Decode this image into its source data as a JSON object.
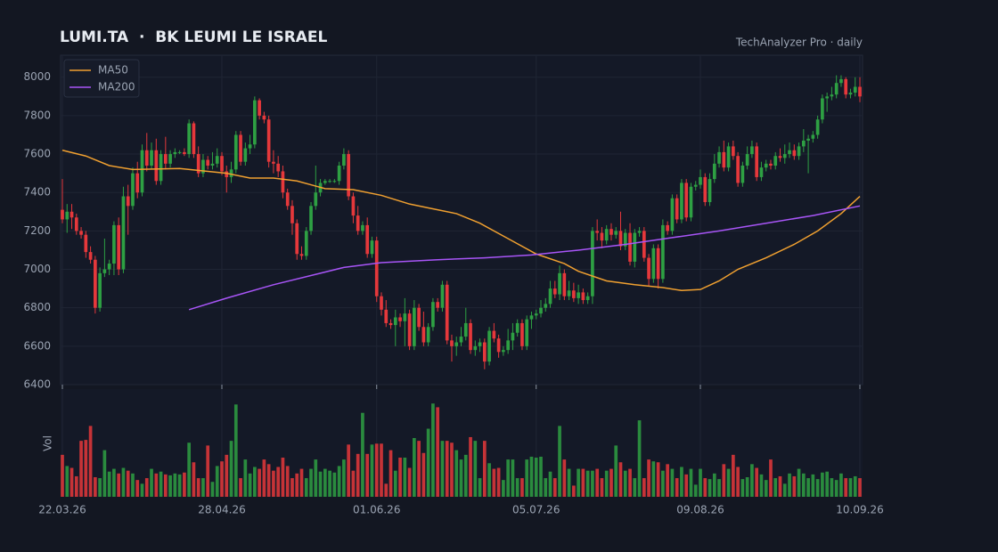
{
  "chart_data": {
    "type": "candlestick",
    "title": "LUMI.TA  ·  BK LEUMI LE ISRAEL",
    "subtitle": "TechAnalyzer Pro · daily",
    "volume_label": "Vol",
    "up_color": "#2ea043",
    "down_color": "#e5383b",
    "xlim": [
      0,
      170
    ],
    "xticks": [
      {
        "value": 0,
        "label": "22.03.26"
      },
      {
        "value": 34,
        "label": "28.04.26"
      },
      {
        "value": 67,
        "label": "01.06.26"
      },
      {
        "value": 101,
        "label": "05.07.26"
      },
      {
        "value": 136,
        "label": "09.08.26"
      },
      {
        "value": 170,
        "label": "10.09.26"
      }
    ],
    "ylim": [
      6400,
      8110
    ],
    "yticks": [
      6400,
      6600,
      6800,
      7000,
      7200,
      7400,
      7600,
      7800,
      8000
    ],
    "vol_ylim": [
      0,
      105
    ],
    "grid": true,
    "legend": "upper left",
    "open": [
      7310,
      7260,
      7300,
      7270,
      7200,
      7180,
      7090,
      7050,
      6800,
      6980,
      7000,
      7030,
      7230,
      7000,
      7380,
      7330,
      7500,
      7400,
      7620,
      7540,
      7620,
      7460,
      7600,
      7550,
      7600,
      7610,
      7610,
      7600,
      7760,
      7600,
      7500,
      7570,
      7540,
      7550,
      7590,
      7510,
      7480,
      7520,
      7700,
      7560,
      7630,
      7650,
      7880,
      7800,
      7780,
      7560,
      7550,
      7510,
      7400,
      7330,
      7240,
      7080,
      7070,
      7200,
      7330,
      7400,
      7450,
      7460,
      7460,
      7460,
      7540,
      7600,
      7380,
      7280,
      7200,
      7230,
      7080,
      7150,
      6860,
      6790,
      6720,
      6710,
      6750,
      6730,
      6770,
      6600,
      6800,
      6700,
      6620,
      6700,
      6830,
      6800,
      6920,
      6630,
      6600,
      6620,
      6650,
      6720,
      6580,
      6600,
      6620,
      6520,
      6680,
      6640,
      6570,
      6580,
      6630,
      6670,
      6720,
      6600,
      6740,
      6760,
      6770,
      6800,
      6820,
      6900,
      6870,
      6980,
      6860,
      6890,
      6850,
      6880,
      6840,
      6860,
      7200,
      7190,
      7150,
      7210,
      7180,
      7200,
      7120,
      7190,
      7040,
      7190,
      7200,
      7060,
      6950,
      7110,
      6950,
      7230,
      7200,
      7370,
      7260,
      7450,
      7270,
      7430,
      7440,
      7480,
      7350,
      7470,
      7550,
      7610,
      7530,
      7640,
      7590,
      7450,
      7540,
      7600,
      7640,
      7480,
      7530,
      7550,
      7540,
      7590,
      7580,
      7600,
      7620,
      7590,
      7640,
      7670,
      7680,
      7700,
      7780,
      7890,
      7900,
      7910,
      7970,
      7990,
      7910,
      7920,
      7950
    ],
    "high": [
      7470,
      7340,
      7340,
      7290,
      7220,
      7200,
      7120,
      7070,
      7010,
      7160,
      7050,
      7250,
      7270,
      7430,
      7440,
      7530,
      7560,
      7650,
      7710,
      7660,
      7680,
      7620,
      7690,
      7620,
      7630,
      7620,
      7630,
      7780,
      7770,
      7640,
      7600,
      7590,
      7610,
      7630,
      7610,
      7540,
      7560,
      7720,
      7720,
      7660,
      7700,
      7900,
      7890,
      7820,
      7800,
      7620,
      7590,
      7540,
      7420,
      7360,
      7260,
      7120,
      7220,
      7350,
      7540,
      7470,
      7470,
      7470,
      7470,
      7560,
      7630,
      7620,
      7400,
      7330,
      7250,
      7270,
      7170,
      7170,
      6880,
      6840,
      6740,
      6790,
      6770,
      6850,
      6790,
      6840,
      6820,
      6780,
      6720,
      6850,
      6850,
      6940,
      6940,
      6660,
      6650,
      6700,
      6800,
      6740,
      6630,
      6640,
      6640,
      6700,
      6720,
      6660,
      6600,
      6690,
      6720,
      6740,
      6740,
      6760,
      6780,
      6790,
      6840,
      6850,
      6940,
      6940,
      7020,
      7000,
      6940,
      6930,
      6920,
      6900,
      6880,
      7220,
      7260,
      7220,
      7230,
      7240,
      7220,
      7300,
      7210,
      7240,
      7210,
      7220,
      7220,
      7080,
      7130,
      7130,
      7260,
      7250,
      7390,
      7390,
      7470,
      7470,
      7450,
      7460,
      7520,
      7500,
      7500,
      7600,
      7640,
      7670,
      7660,
      7670,
      7610,
      7560,
      7640,
      7670,
      7660,
      7560,
      7570,
      7570,
      7610,
      7630,
      7650,
      7660,
      7650,
      7660,
      7730,
      7700,
      7720,
      7800,
      7910,
      7920,
      7950,
      8010,
      8010,
      8000,
      7940,
      8000,
      8000
    ],
    "low": [
      7240,
      7190,
      7210,
      7180,
      7160,
      7060,
      7030,
      6770,
      6780,
      6960,
      6970,
      6970,
      6970,
      6980,
      7180,
      7310,
      7370,
      7380,
      7510,
      7520,
      7440,
      7440,
      7520,
      7530,
      7580,
      7600,
      7590,
      7580,
      7580,
      7480,
      7480,
      7520,
      7520,
      7530,
      7490,
      7400,
      7450,
      7500,
      7540,
      7540,
      7600,
      7630,
      7780,
      7760,
      7530,
      7500,
      7480,
      7370,
      7310,
      7180,
      7050,
      7050,
      7050,
      7180,
      7310,
      7380,
      7440,
      7450,
      7450,
      7440,
      7520,
      7360,
      7240,
      7180,
      7180,
      7060,
      7060,
      6830,
      6760,
      6700,
      6690,
      6600,
      6700,
      6600,
      6580,
      6580,
      6680,
      6600,
      6600,
      6680,
      6780,
      6780,
      6610,
      6520,
      6550,
      6600,
      6630,
      6560,
      6550,
      6570,
      6480,
      6500,
      6620,
      6540,
      6550,
      6560,
      6580,
      6650,
      6580,
      6580,
      6690,
      6740,
      6750,
      6780,
      6800,
      6850,
      6840,
      6840,
      6840,
      6830,
      6820,
      6820,
      6820,
      6820,
      7150,
      7110,
      7130,
      7150,
      7160,
      7100,
      7100,
      7020,
      7010,
      7170,
      7040,
      6910,
      6930,
      6900,
      6930,
      7180,
      7180,
      7240,
      7240,
      7250,
      7250,
      7410,
      7420,
      7330,
      7330,
      7450,
      7530,
      7510,
      7510,
      7570,
      7430,
      7430,
      7520,
      7580,
      7460,
      7460,
      7510,
      7520,
      7520,
      7560,
      7550,
      7580,
      7570,
      7570,
      7610,
      7500,
      7660,
      7680,
      7760,
      7820,
      7880,
      7890,
      7950,
      7890,
      7890,
      7900,
      7870
    ],
    "close": [
      7260,
      7300,
      7270,
      7200,
      7180,
      7090,
      7050,
      6800,
      6980,
      7000,
      7030,
      7230,
      7000,
      7380,
      7330,
      7500,
      7400,
      7620,
      7540,
      7620,
      7460,
      7600,
      7550,
      7600,
      7610,
      7610,
      7600,
      7760,
      7600,
      7500,
      7570,
      7540,
      7550,
      7590,
      7510,
      7480,
      7520,
      7700,
      7560,
      7630,
      7650,
      7880,
      7800,
      7780,
      7560,
      7550,
      7510,
      7400,
      7330,
      7240,
      7080,
      7070,
      7200,
      7330,
      7400,
      7450,
      7460,
      7460,
      7460,
      7540,
      7600,
      7380,
      7280,
      7200,
      7230,
      7080,
      7150,
      6860,
      6790,
      6720,
      6710,
      6750,
      6730,
      6770,
      6600,
      6800,
      6700,
      6620,
      6700,
      6830,
      6800,
      6920,
      6630,
      6600,
      6620,
      6650,
      6720,
      6580,
      6600,
      6620,
      6520,
      6680,
      6640,
      6570,
      6580,
      6630,
      6670,
      6720,
      6600,
      6740,
      6760,
      6770,
      6800,
      6820,
      6900,
      6870,
      6980,
      6860,
      6890,
      6850,
      6880,
      6840,
      6860,
      7200,
      7190,
      7150,
      7210,
      7180,
      7200,
      7120,
      7190,
      7040,
      7190,
      7200,
      7060,
      6950,
      7110,
      6950,
      7230,
      7200,
      7370,
      7260,
      7450,
      7270,
      7430,
      7440,
      7480,
      7350,
      7470,
      7550,
      7610,
      7530,
      7640,
      7590,
      7450,
      7540,
      7600,
      7640,
      7480,
      7530,
      7550,
      7540,
      7590,
      7580,
      7600,
      7620,
      7590,
      7640,
      7670,
      7680,
      7700,
      7780,
      7890,
      7900,
      7910,
      7970,
      7990,
      7910,
      7920,
      7950,
      7900
    ],
    "volume": [
      45,
      33,
      31,
      22,
      60,
      61,
      76,
      21,
      20,
      50,
      27,
      30,
      25,
      31,
      28,
      25,
      18,
      14,
      20,
      30,
      25,
      27,
      24,
      23,
      25,
      24,
      26,
      58,
      37,
      20,
      20,
      55,
      16,
      33,
      38,
      45,
      60,
      99,
      20,
      40,
      25,
      32,
      30,
      40,
      35,
      28,
      32,
      42,
      33,
      20,
      25,
      30,
      20,
      30,
      40,
      27,
      30,
      28,
      26,
      33,
      40,
      56,
      28,
      46,
      90,
      46,
      56,
      57,
      57,
      14,
      50,
      28,
      42,
      42,
      31,
      63,
      60,
      47,
      73,
      100,
      96,
      60,
      60,
      58,
      50,
      40,
      45,
      64,
      60,
      20,
      60,
      36,
      30,
      31,
      18,
      40,
      40,
      20,
      20,
      40,
      43,
      42,
      43,
      20,
      27,
      20,
      76,
      40,
      30,
      12,
      30,
      30,
      28,
      28,
      30,
      20,
      28,
      30,
      55,
      37,
      28,
      30,
      20,
      82,
      20,
      40,
      38,
      37,
      28,
      35,
      30,
      20,
      32,
      24,
      30,
      13,
      30,
      20,
      19,
      25,
      19,
      35,
      30,
      45,
      32,
      19,
      21,
      35,
      31,
      24,
      18,
      40,
      20,
      22,
      14,
      25,
      22,
      30,
      25,
      20,
      24,
      19,
      26,
      27,
      20,
      18,
      25,
      20,
      20,
      22,
      20
    ],
    "series": [
      {
        "name": "MA50",
        "color": "#f0a030",
        "x": [
          0,
          5,
          10,
          15,
          25,
          35,
          40,
          45,
          50,
          53,
          56,
          62,
          68,
          74,
          78,
          84,
          89,
          95,
          101,
          107,
          110,
          116,
          122,
          128,
          132,
          136,
          140,
          144,
          150,
          156,
          161,
          166,
          170
        ],
        "values": [
          7620,
          7590,
          7540,
          7520,
          7525,
          7500,
          7475,
          7475,
          7460,
          7440,
          7420,
          7415,
          7385,
          7340,
          7320,
          7290,
          7240,
          7160,
          7080,
          7030,
          6990,
          6940,
          6920,
          6905,
          6890,
          6895,
          6940,
          7000,
          7060,
          7130,
          7200,
          7290,
          7380
        ]
      },
      {
        "name": "MA200",
        "color": "#a855f7",
        "x": [
          27,
          35,
          45,
          55,
          60,
          68,
          80,
          90,
          100,
          110,
          120,
          130,
          140,
          150,
          160,
          170
        ],
        "values": [
          6790,
          6850,
          6920,
          6980,
          7010,
          7035,
          7050,
          7060,
          7075,
          7100,
          7130,
          7165,
          7200,
          7240,
          7280,
          7330
        ]
      }
    ]
  }
}
